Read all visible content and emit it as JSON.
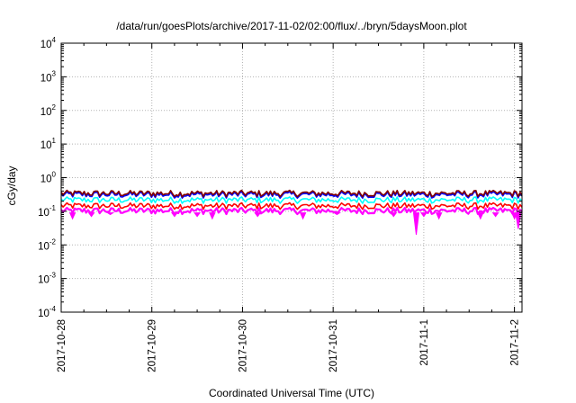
{
  "chart_data": {
    "type": "line",
    "title": "/data/run/goesPlots/archive/2017-11-02/02:00/flux/../bryn/5daysMoon.plot",
    "xlabel": "Coordinated Universal Time (UTC)",
    "ylabel": "cGy/day",
    "yscale": "log",
    "ylim": [
      0.0001,
      10000
    ],
    "xlim": [
      "2017-10-28T00:00",
      "2017-11-02T02:00"
    ],
    "y_ticks": [
      {
        "base": "10",
        "exp": "-4",
        "value": 0.0001
      },
      {
        "base": "10",
        "exp": "-3",
        "value": 0.001
      },
      {
        "base": "10",
        "exp": "-2",
        "value": 0.01
      },
      {
        "base": "10",
        "exp": "-1",
        "value": 0.1
      },
      {
        "base": "10",
        "exp": "0",
        "value": 1
      },
      {
        "base": "10",
        "exp": "1",
        "value": 10
      },
      {
        "base": "10",
        "exp": "2",
        "value": 100
      },
      {
        "base": "10",
        "exp": "3",
        "value": 1000
      },
      {
        "base": "10",
        "exp": "4",
        "value": 10000
      }
    ],
    "x_ticks": [
      "2017-10-28",
      "2017-10-29",
      "2017-10-30",
      "2017-10-31",
      "2017-11-1",
      "2017-11-2"
    ],
    "x_tick_times": [
      "2017-10-28T00:00",
      "2017-10-29T00:00",
      "2017-10-30T00:00",
      "2017-10-31T00:00",
      "2017-11-01T00:00",
      "2017-11-02T00:00"
    ],
    "grid": true,
    "series": [
      {
        "color": "#ff00ff",
        "baseline": 0.1,
        "dips": [
          [
            "2017-10-28T03:00",
            0.06
          ],
          [
            "2017-10-28T08:00",
            0.07
          ],
          [
            "2017-10-28T13:00",
            0.08
          ],
          [
            "2017-10-29T06:00",
            0.07
          ],
          [
            "2017-10-29T12:00",
            0.07
          ],
          [
            "2017-10-29T16:00",
            0.06
          ],
          [
            "2017-10-30T04:00",
            0.07
          ],
          [
            "2017-10-30T16:00",
            0.06
          ],
          [
            "2017-10-31T01:00",
            0.08
          ],
          [
            "2017-10-31T16:00",
            0.07
          ],
          [
            "2017-11-01T00:00",
            0.07
          ],
          [
            "2017-10-31T22:00",
            0.02
          ],
          [
            "2017-11-01T04:00",
            0.06
          ],
          [
            "2017-11-01T15:00",
            0.06
          ],
          [
            "2017-11-01T19:00",
            0.07
          ],
          [
            "2017-11-02T00:00",
            0.06
          ],
          [
            "2017-11-02T01:00",
            0.03
          ]
        ]
      },
      {
        "color": "#ff0000",
        "baseline": 0.14
      },
      {
        "color": "#00ffff",
        "baseline": 0.21
      },
      {
        "color": "#0000ff",
        "baseline": 0.3
      },
      {
        "color": "#800000",
        "baseline": 0.33
      }
    ]
  }
}
